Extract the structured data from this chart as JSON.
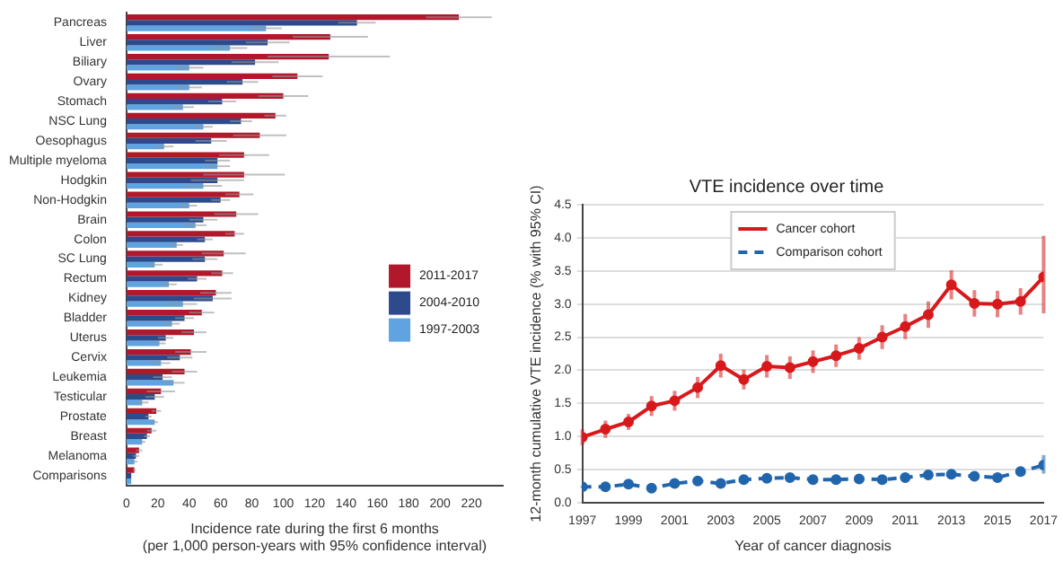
{
  "chart_data": [
    {
      "type": "bar",
      "orientation": "horizontal",
      "categories": [
        "Pancreas",
        "Liver",
        "Biliary",
        "Ovary",
        "Stomach",
        "NSC Lung",
        "Oesophagus",
        "Multiple myeloma",
        "Hodgkin",
        "Non-Hodgkin",
        "Brain",
        "Colon",
        "SC Lung",
        "Rectum",
        "Kidney",
        "Bladder",
        "Uterus",
        "Cervix",
        "Leukemia",
        "Testicular",
        "Prostate",
        "Breast",
        "Melanoma",
        "Comparisons"
      ],
      "series": [
        {
          "name": "2011-2017",
          "color": "#b2182b",
          "values": [
            212,
            130,
            129,
            109,
            100,
            95,
            85,
            75,
            75,
            72,
            70,
            69,
            62,
            61,
            57,
            48,
            43,
            41,
            37,
            22,
            19,
            16,
            8,
            5
          ],
          "errors": [
            21,
            24,
            39,
            16,
            16,
            7,
            17,
            16,
            26,
            9,
            14,
            6,
            14,
            7,
            10,
            8,
            8,
            10,
            8,
            9,
            3,
            3,
            2,
            1
          ]
        },
        {
          "name": "2004-2010",
          "color": "#2c4a8c",
          "values": [
            147,
            90,
            82,
            74,
            61,
            73,
            54,
            58,
            58,
            60,
            49,
            50,
            50,
            45,
            55,
            37,
            25,
            34,
            23,
            18,
            14,
            13,
            6,
            3
          ],
          "errors": [
            12,
            14,
            15,
            10,
            9,
            7,
            10,
            8,
            17,
            6,
            9,
            5,
            8,
            6,
            12,
            6,
            5,
            8,
            6,
            6,
            2,
            2,
            2,
            null
          ]
        },
        {
          "name": "1997-2003",
          "color": "#5fa3e0",
          "values": [
            89,
            66,
            40,
            40,
            36,
            49,
            24,
            58,
            49,
            40,
            44,
            32,
            18,
            27,
            36,
            29,
            21,
            22,
            30,
            10,
            18,
            10,
            5,
            3
          ],
          "errors": [
            10,
            11,
            9,
            8,
            7,
            6,
            6,
            8,
            12,
            5,
            7,
            4,
            5,
            5,
            9,
            5,
            4,
            6,
            7,
            4,
            2,
            2,
            2,
            null
          ]
        }
      ],
      "xlim": [
        0,
        240
      ],
      "xticks": [
        0,
        20,
        40,
        60,
        80,
        100,
        120,
        140,
        160,
        180,
        200,
        220
      ],
      "xlabel": "Incidence rate during the first 6 months\n(per 1,000 person-years with 95% confidence interval)",
      "legend": "right",
      "grid": false
    },
    {
      "type": "line",
      "title": "VTE incidence over time",
      "xlabel": "Year of cancer diagnosis",
      "ylabel": "12-month cumulative VTE incidence (% with 95% CI)",
      "x": [
        1997,
        1998,
        1999,
        2000,
        2001,
        2002,
        2003,
        2004,
        2005,
        2006,
        2007,
        2008,
        2009,
        2010,
        2011,
        2012,
        2013,
        2014,
        2015,
        2016,
        2017
      ],
      "series": [
        {
          "name": "Cancer cohort",
          "color": "#d7191c",
          "line_style": "solid",
          "values": [
            0.99,
            1.11,
            1.22,
            1.46,
            1.54,
            1.74,
            2.07,
            1.86,
            2.06,
            2.04,
            2.13,
            2.22,
            2.33,
            2.5,
            2.66,
            2.84,
            3.29,
            3.01,
            3.0,
            3.04,
            3.41
          ],
          "errors": [
            0.12,
            0.13,
            0.12,
            0.15,
            0.15,
            0.16,
            0.18,
            0.15,
            0.17,
            0.17,
            0.17,
            0.17,
            0.17,
            0.18,
            0.19,
            0.2,
            0.22,
            0.2,
            0.2,
            0.2,
            [
              2.86,
              4.03
            ]
          ]
        },
        {
          "name": "Comparison cohort",
          "color": "#2166ac",
          "line_style": "dashed",
          "values": [
            0.24,
            0.24,
            0.28,
            0.22,
            0.29,
            0.33,
            0.29,
            0.35,
            0.37,
            0.38,
            0.35,
            0.35,
            0.36,
            0.35,
            0.38,
            0.42,
            0.43,
            0.4,
            0.38,
            0.47,
            0.57
          ],
          "errors": [
            0.02,
            0.02,
            0.02,
            0.02,
            0.02,
            0.02,
            0.02,
            0.02,
            0.02,
            0.02,
            0.02,
            0.02,
            0.02,
            0.02,
            0.02,
            0.02,
            0.02,
            0.02,
            0.02,
            0.03,
            [
              0.44,
              0.72
            ]
          ]
        }
      ],
      "xlim": [
        1997,
        2017
      ],
      "xticks": [
        1997,
        1999,
        2001,
        2003,
        2005,
        2007,
        2009,
        2011,
        2013,
        2015,
        2017
      ],
      "ylim": [
        0,
        4.5
      ],
      "yticks": [
        {
          "value": 0,
          "label": "0.0"
        },
        {
          "value": 0.5,
          "label": "0.5"
        },
        {
          "value": 1,
          "label": "1.0"
        },
        {
          "value": 1.5,
          "label": "1.5"
        },
        {
          "value": 2,
          "label": "2.0"
        },
        {
          "value": 2.5,
          "label": "2.5"
        },
        {
          "value": 3,
          "label": "3.0"
        },
        {
          "value": 3.5,
          "label": "3.5"
        },
        {
          "value": 4,
          "label": "4.0"
        },
        {
          "value": 4.5,
          "label": "4.5"
        }
      ],
      "grid": "y",
      "legend": "top",
      "marker": "circle"
    }
  ]
}
